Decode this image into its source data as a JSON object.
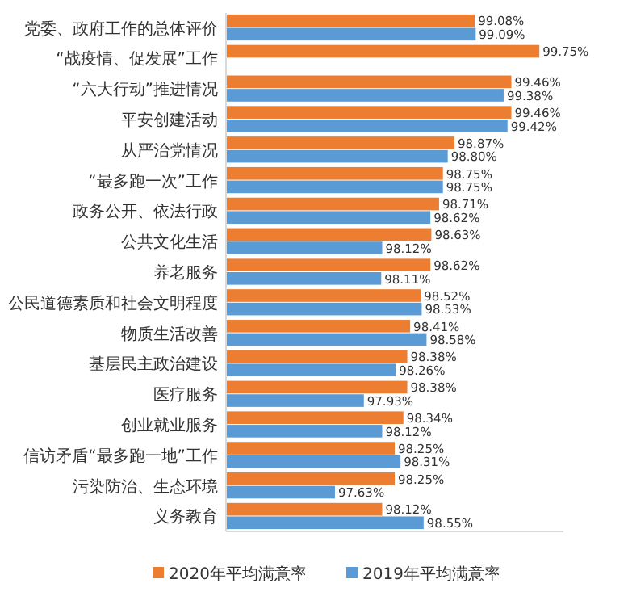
{
  "chart_data": {
    "type": "bar",
    "orientation": "horizontal",
    "categories": [
      "党委、政府工作的总体评价",
      "“战疫情、促发展”工作",
      "“六大行动”推进情况",
      "平安创建活动",
      "从严治党情况",
      "“最多跑一次”工作",
      "政务公开、依法行政",
      "公共文化生活",
      "养老服务",
      "公民道德素质和社会文明程度",
      "物质生活改善",
      "基层民主政治建设",
      "医疗服务",
      "创业就业服务",
      "信访矛盾“最多跑一地”工作",
      "污染防治、生态环境",
      "义务教育"
    ],
    "xlim": [
      96.5,
      100
    ],
    "tick_labels": "y",
    "legend": "bottom",
    "series": [
      {
        "name": "2020年平均满意率",
        "color": "#ed7d31",
        "values": [
          99.08,
          99.75,
          99.46,
          99.46,
          98.87,
          98.75,
          98.71,
          98.63,
          98.62,
          98.52,
          98.41,
          98.38,
          98.38,
          98.34,
          98.25,
          98.25,
          98.12
        ],
        "value_labels": [
          "99.08%",
          "99.75%",
          "99.46%",
          "99.46%",
          "98.87%",
          "98.75%",
          "98.71%",
          "98.63%",
          "98.62%",
          "98.52%",
          "98.41%",
          "98.38%",
          "98.38%",
          "98.34%",
          "98.25%",
          "98.25%",
          "98.12%"
        ]
      },
      {
        "name": "2019年平均满意率",
        "color": "#5b9bd5",
        "values": [
          99.09,
          null,
          99.38,
          99.42,
          98.8,
          98.75,
          98.62,
          98.12,
          98.11,
          98.53,
          98.58,
          98.26,
          97.93,
          98.12,
          98.31,
          97.63,
          98.55
        ],
        "value_labels": [
          "99.09%",
          null,
          "99.38%",
          "99.42%",
          "98.80%",
          "98.75%",
          "98.62%",
          "98.12%",
          "98.11%",
          "98.53%",
          "98.58%",
          "98.26%",
          "97.93%",
          "98.12%",
          "98.31%",
          "97.63%",
          "98.55%"
        ]
      }
    ]
  }
}
